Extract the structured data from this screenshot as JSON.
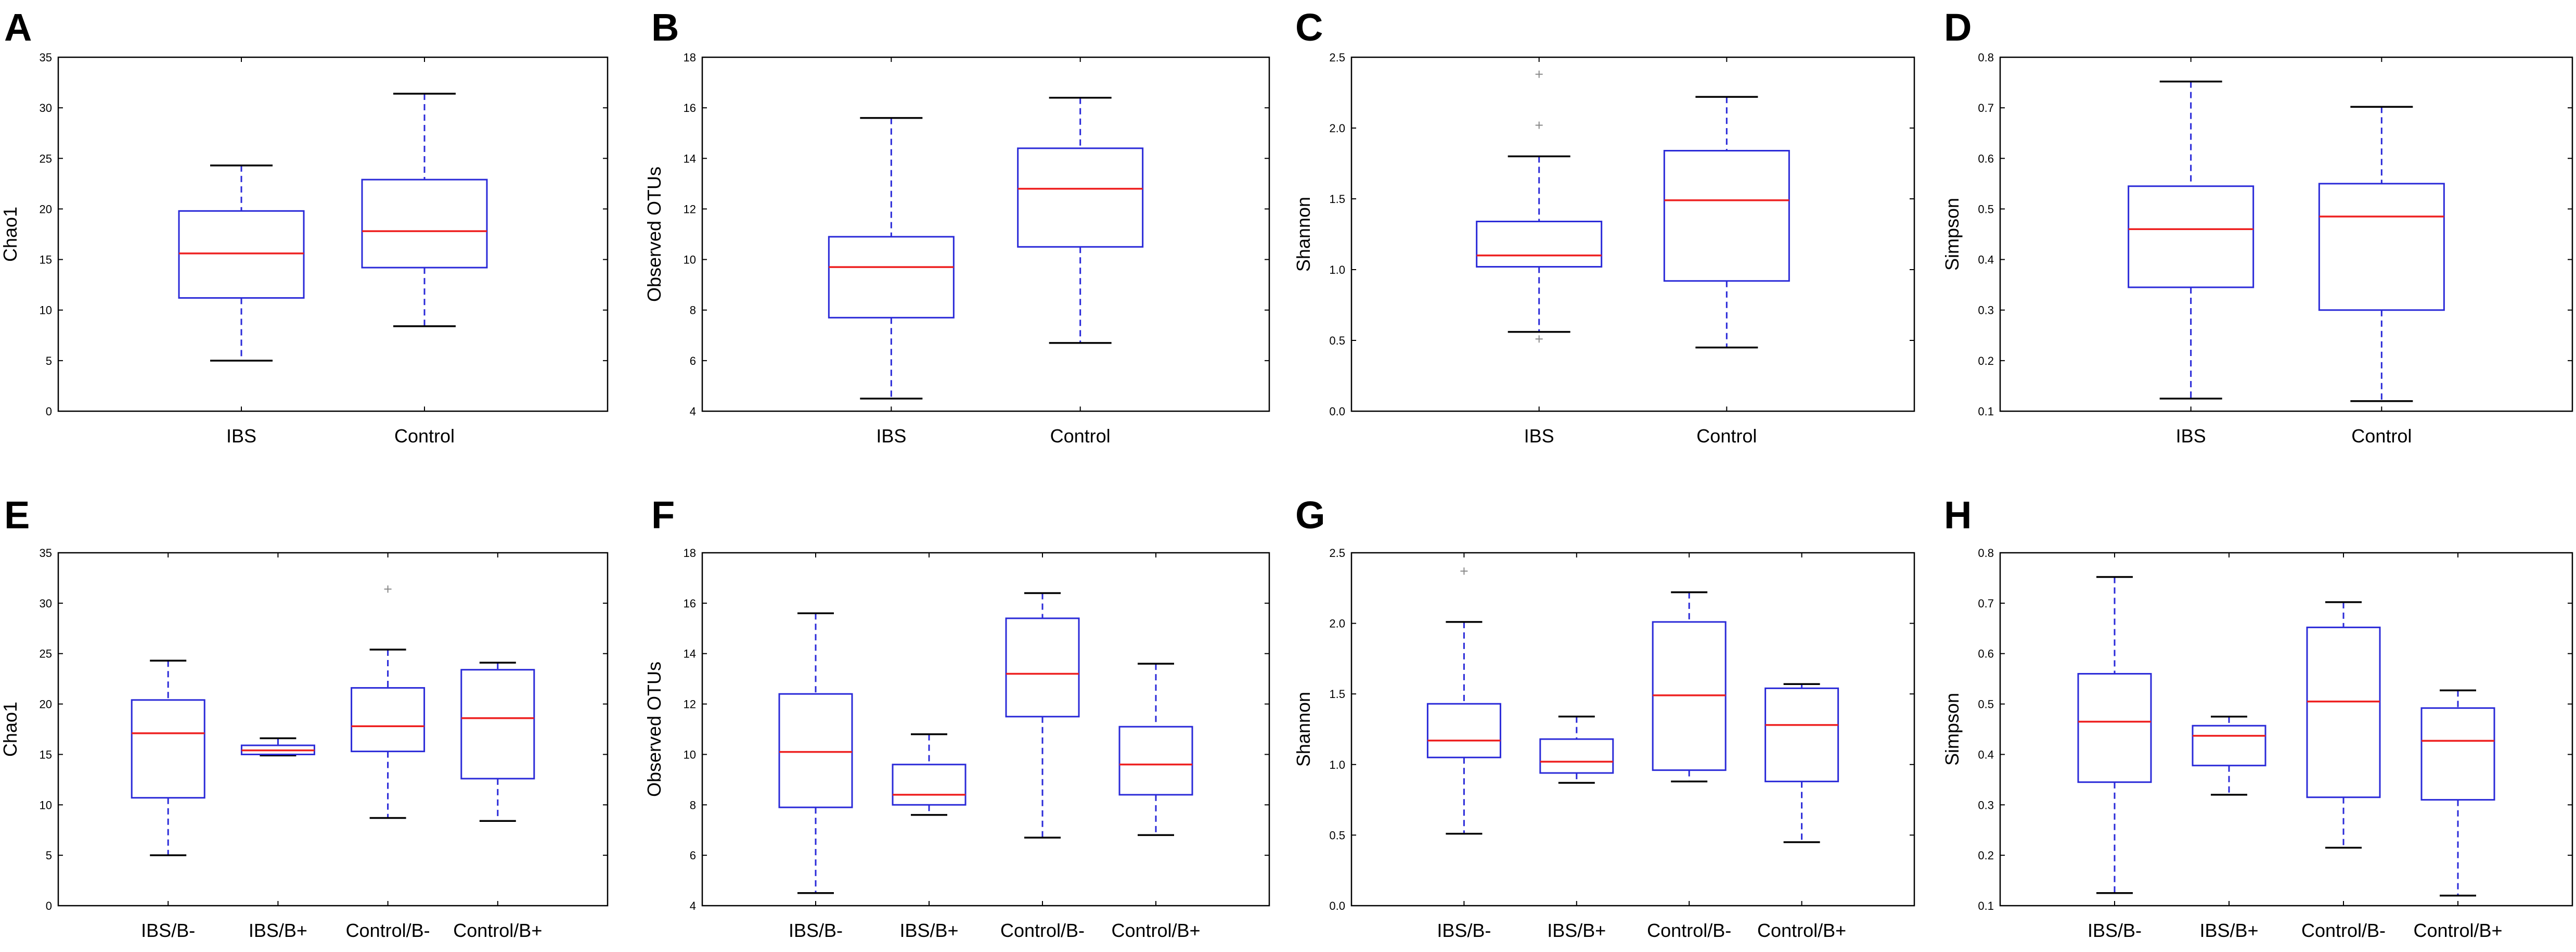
{
  "colors": {
    "box": "#2a2ad8",
    "median": "#ee2020",
    "whisker": "#2a2ad8",
    "cap": "#000000",
    "flier": "#888888",
    "axes": "#000000"
  },
  "chart_data": [
    {
      "panel": "A",
      "type": "box",
      "ylabel": "Chao1",
      "ylim": [
        0,
        35
      ],
      "yticks": [
        0,
        5,
        10,
        15,
        20,
        25,
        30,
        35
      ],
      "ytick_labels": [
        "0",
        "5",
        "10",
        "15",
        "20",
        "25",
        "30",
        "35"
      ],
      "categories": [
        "IBS",
        "Control"
      ],
      "boxes": [
        {
          "min": 5,
          "q1": 11.2,
          "median": 15.6,
          "q3": 19.8,
          "max": 24.3,
          "fliers": []
        },
        {
          "min": 8.4,
          "q1": 14.2,
          "median": 17.8,
          "q3": 22.9,
          "max": 31.4,
          "fliers": []
        }
      ]
    },
    {
      "panel": "B",
      "type": "box",
      "ylabel": "Observed OTUs",
      "ylim": [
        4,
        18
      ],
      "yticks": [
        4,
        6,
        8,
        10,
        12,
        14,
        16,
        18
      ],
      "ytick_labels": [
        "4",
        "6",
        "8",
        "10",
        "12",
        "14",
        "16",
        "18"
      ],
      "categories": [
        "IBS",
        "Control"
      ],
      "boxes": [
        {
          "min": 4.5,
          "q1": 7.7,
          "median": 9.7,
          "q3": 10.9,
          "max": 15.6,
          "fliers": []
        },
        {
          "min": 6.7,
          "q1": 10.5,
          "median": 12.8,
          "q3": 14.4,
          "max": 16.4,
          "fliers": []
        }
      ]
    },
    {
      "panel": "C",
      "type": "box",
      "ylabel": "Shannon",
      "ylim": [
        0,
        2.5
      ],
      "yticks": [
        0,
        0.5,
        1,
        1.5,
        2,
        2.5
      ],
      "ytick_labels": [
        "0.0",
        "0.5",
        "1.0",
        "1.5",
        "2.0",
        "2.5"
      ],
      "categories": [
        "IBS",
        "Control"
      ],
      "boxes": [
        {
          "min": 0.56,
          "q1": 1.02,
          "median": 1.1,
          "q3": 1.34,
          "max": 1.8,
          "fliers": [
            2.38,
            2.02,
            0.51
          ]
        },
        {
          "min": 0.45,
          "q1": 0.92,
          "median": 1.49,
          "q3": 1.84,
          "max": 2.22,
          "fliers": []
        }
      ]
    },
    {
      "panel": "D",
      "type": "box",
      "ylabel": "Simpson",
      "ylim": [
        0.1,
        0.8
      ],
      "yticks": [
        0.1,
        0.2,
        0.3,
        0.4,
        0.5,
        0.6,
        0.7,
        0.8
      ],
      "ytick_labels": [
        "0.1",
        "0.2",
        "0.3",
        "0.4",
        "0.5",
        "0.6",
        "0.7",
        "0.8"
      ],
      "categories": [
        "IBS",
        "Control"
      ],
      "boxes": [
        {
          "min": 0.125,
          "q1": 0.345,
          "median": 0.46,
          "q3": 0.545,
          "max": 0.752,
          "fliers": []
        },
        {
          "min": 0.12,
          "q1": 0.3,
          "median": 0.485,
          "q3": 0.55,
          "max": 0.702,
          "fliers": []
        }
      ]
    },
    {
      "panel": "E",
      "type": "box",
      "ylabel": "Chao1",
      "ylim": [
        0,
        35
      ],
      "yticks": [
        0,
        5,
        10,
        15,
        20,
        25,
        30,
        35
      ],
      "ytick_labels": [
        "0",
        "5",
        "10",
        "15",
        "20",
        "25",
        "30",
        "35"
      ],
      "categories": [
        "IBS/B-",
        "IBS/B+",
        "Control/B-",
        "Control/B+"
      ],
      "boxes": [
        {
          "min": 5,
          "q1": 10.7,
          "median": 17.1,
          "q3": 20.4,
          "max": 24.3,
          "fliers": []
        },
        {
          "min": 14.9,
          "q1": 15,
          "median": 15.4,
          "q3": 15.9,
          "max": 16.6,
          "fliers": []
        },
        {
          "min": 8.7,
          "q1": 15.3,
          "median": 17.8,
          "q3": 21.6,
          "max": 25.4,
          "fliers": [
            31.4
          ]
        },
        {
          "min": 8.4,
          "q1": 12.6,
          "median": 18.6,
          "q3": 23.4,
          "max": 24.1,
          "fliers": []
        }
      ]
    },
    {
      "panel": "F",
      "type": "box",
      "ylabel": "Observed OTUs",
      "ylim": [
        4,
        18
      ],
      "yticks": [
        4,
        6,
        8,
        10,
        12,
        14,
        16,
        18
      ],
      "ytick_labels": [
        "4",
        "6",
        "8",
        "10",
        "12",
        "14",
        "16",
        "18"
      ],
      "categories": [
        "IBS/B-",
        "IBS/B+",
        "Control/B-",
        "Control/B+"
      ],
      "boxes": [
        {
          "min": 4.5,
          "q1": 7.9,
          "median": 10.1,
          "q3": 12.4,
          "max": 15.6,
          "fliers": []
        },
        {
          "min": 7.6,
          "q1": 8,
          "median": 8.4,
          "q3": 9.6,
          "max": 10.8,
          "fliers": []
        },
        {
          "min": 6.7,
          "q1": 11.5,
          "median": 13.2,
          "q3": 15.4,
          "max": 16.4,
          "fliers": []
        },
        {
          "min": 6.8,
          "q1": 8.4,
          "median": 9.6,
          "q3": 11.1,
          "max": 13.6,
          "fliers": []
        }
      ]
    },
    {
      "panel": "G",
      "type": "box",
      "ylabel": "Shannon",
      "ylim": [
        0,
        2.5
      ],
      "yticks": [
        0,
        0.5,
        1,
        1.5,
        2,
        2.5
      ],
      "ytick_labels": [
        "0.0",
        "0.5",
        "1.0",
        "1.5",
        "2.0",
        "2.5"
      ],
      "categories": [
        "IBS/B-",
        "IBS/B+",
        "Control/B-",
        "Control/B+"
      ],
      "boxes": [
        {
          "min": 0.51,
          "q1": 1.05,
          "median": 1.17,
          "q3": 1.43,
          "max": 2.01,
          "fliers": [
            2.37
          ]
        },
        {
          "min": 0.87,
          "q1": 0.94,
          "median": 1.02,
          "q3": 1.18,
          "max": 1.34,
          "fliers": []
        },
        {
          "min": 0.88,
          "q1": 0.96,
          "median": 1.49,
          "q3": 2.01,
          "max": 2.22,
          "fliers": []
        },
        {
          "min": 0.45,
          "q1": 0.88,
          "median": 1.28,
          "q3": 1.54,
          "max": 1.57,
          "fliers": []
        }
      ]
    },
    {
      "panel": "H",
      "type": "box",
      "ylabel": "Simpson",
      "ylim": [
        0.1,
        0.8
      ],
      "yticks": [
        0.1,
        0.2,
        0.3,
        0.4,
        0.5,
        0.6,
        0.7,
        0.8
      ],
      "ytick_labels": [
        "0.1",
        "0.2",
        "0.3",
        "0.4",
        "0.5",
        "0.6",
        "0.7",
        "0.8"
      ],
      "categories": [
        "IBS/B-",
        "IBS/B+",
        "Control/B-",
        "Control/B+"
      ],
      "boxes": [
        {
          "min": 0.125,
          "q1": 0.345,
          "median": 0.465,
          "q3": 0.56,
          "max": 0.752,
          "fliers": []
        },
        {
          "min": 0.32,
          "q1": 0.378,
          "median": 0.437,
          "q3": 0.457,
          "max": 0.475,
          "fliers": []
        },
        {
          "min": 0.215,
          "q1": 0.315,
          "median": 0.505,
          "q3": 0.652,
          "max": 0.702,
          "fliers": []
        },
        {
          "min": 0.12,
          "q1": 0.31,
          "median": 0.427,
          "q3": 0.492,
          "max": 0.527,
          "fliers": []
        }
      ]
    }
  ]
}
